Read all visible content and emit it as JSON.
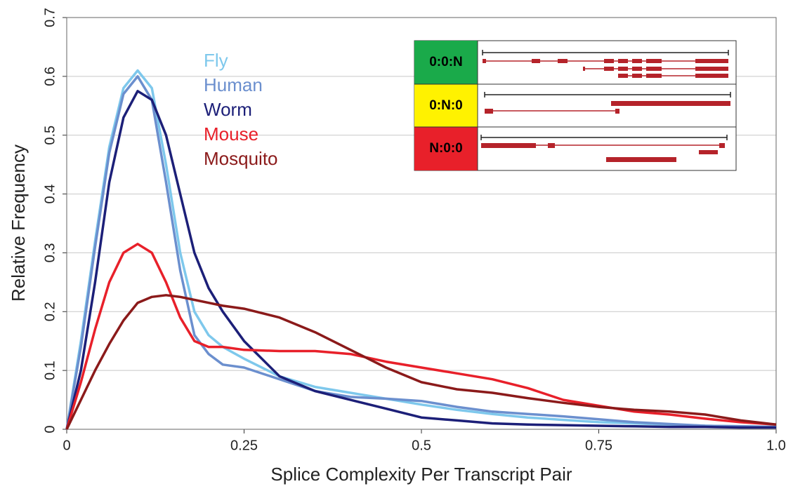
{
  "chart_data": {
    "type": "line",
    "xlabel": "Splice Complexity Per Transcript Pair",
    "ylabel": "Relative Frequency",
    "x": [
      0,
      0.02,
      0.04,
      0.06,
      0.08,
      0.1,
      0.12,
      0.14,
      0.16,
      0.18,
      0.2,
      0.22,
      0.25,
      0.3,
      0.35,
      0.4,
      0.45,
      0.5,
      0.55,
      0.6,
      0.65,
      0.7,
      0.75,
      0.8,
      0.85,
      0.9,
      0.95,
      1
    ],
    "series": [
      {
        "name": "Fly",
        "color": "#7ec8ec",
        "values": [
          0,
          0.15,
          0.32,
          0.48,
          0.58,
          0.61,
          0.58,
          0.45,
          0.3,
          0.2,
          0.16,
          0.14,
          0.12,
          0.09,
          0.072,
          0.062,
          0.052,
          0.042,
          0.033,
          0.026,
          0.02,
          0.016,
          0.012,
          0.01,
          0.008,
          0.006,
          0.005,
          0.004
        ]
      },
      {
        "name": "Human",
        "color": "#6b8fce",
        "values": [
          0,
          0.14,
          0.31,
          0.47,
          0.57,
          0.6,
          0.56,
          0.42,
          0.27,
          0.16,
          0.128,
          0.11,
          0.105,
          0.085,
          0.065,
          0.055,
          0.052,
          0.048,
          0.038,
          0.03,
          0.026,
          0.022,
          0.017,
          0.012,
          0.009,
          0.006,
          0.005,
          0.004
        ]
      },
      {
        "name": "Worm",
        "color": "#1c1f78",
        "values": [
          0,
          0.1,
          0.25,
          0.42,
          0.53,
          0.575,
          0.56,
          0.5,
          0.4,
          0.3,
          0.24,
          0.2,
          0.15,
          0.09,
          0.065,
          0.05,
          0.035,
          0.02,
          0.015,
          0.01,
          0.008,
          0.007,
          0.006,
          0.005,
          0.004,
          0.004,
          0.003,
          0.003
        ]
      },
      {
        "name": "Mouse",
        "color": "#e8202a",
        "values": [
          0,
          0.08,
          0.17,
          0.25,
          0.3,
          0.315,
          0.3,
          0.25,
          0.19,
          0.15,
          0.14,
          0.14,
          0.135,
          0.133,
          0.133,
          0.128,
          0.115,
          0.105,
          0.095,
          0.085,
          0.07,
          0.05,
          0.04,
          0.03,
          0.025,
          0.018,
          0.012,
          0.008
        ]
      },
      {
        "name": "Mosquito",
        "color": "#8b1a1a",
        "values": [
          0,
          0.05,
          0.1,
          0.145,
          0.185,
          0.215,
          0.225,
          0.228,
          0.225,
          0.22,
          0.215,
          0.21,
          0.205,
          0.19,
          0.165,
          0.135,
          0.105,
          0.08,
          0.068,
          0.062,
          0.053,
          0.045,
          0.038,
          0.033,
          0.03,
          0.025,
          0.015,
          0.008
        ]
      }
    ],
    "xlim": [
      0,
      1
    ],
    "xticks": [
      0,
      0.25,
      0.5,
      0.75,
      {
        "value": 1,
        "label": "1.0"
      }
    ],
    "ylim": [
      0,
      0.7
    ],
    "yticks": [
      0,
      0.1,
      0.2,
      0.3,
      0.4,
      0.5,
      0.6,
      0.7
    ],
    "grid": true
  },
  "inset": {
    "labels": [
      "0:0:N",
      "0:N:0",
      "N:0:0"
    ]
  }
}
